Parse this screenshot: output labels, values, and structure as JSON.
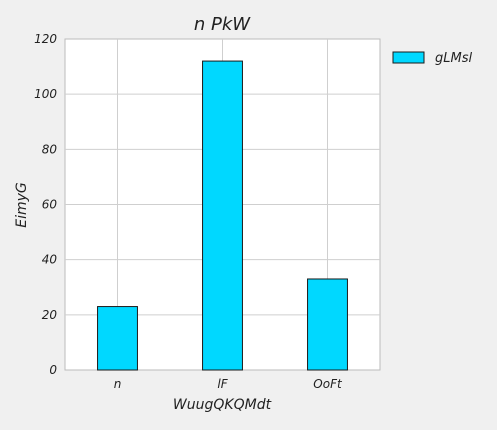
{
  "chart_data": {
    "type": "bar",
    "title": "n PkW",
    "xlabel": "WuugQKQMdt",
    "ylabel": "EimyG",
    "categories": [
      "n",
      "lF",
      "OoFt"
    ],
    "series": [
      {
        "name": "gLMsl",
        "values": [
          23,
          112,
          33
        ]
      }
    ],
    "ylim": [
      0,
      120
    ],
    "yticks": [
      0,
      20,
      40,
      60,
      80,
      100,
      120
    ],
    "grid": true,
    "legend": "top-right outside plot",
    "colors": {
      "bar": "#00d8ff",
      "bar_edge": "#1a1a1a",
      "grid": "#cfcfcf",
      "background": "#f0f0f0",
      "plot_background": "#ffffff",
      "text": "#222222"
    }
  }
}
